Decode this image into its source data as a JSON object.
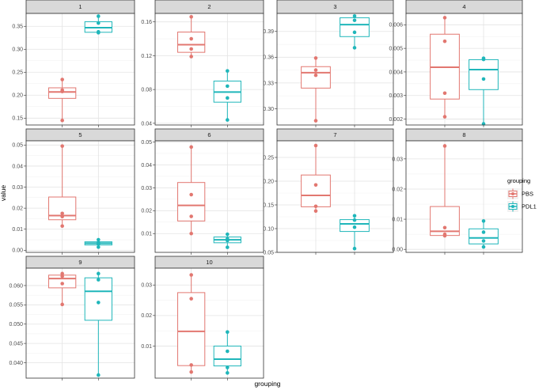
{
  "chart_data": {
    "type": "box",
    "xlabel": "grouping",
    "ylabel": "value",
    "legend": {
      "title": "grouping",
      "placement": "right",
      "entries": [
        {
          "name": "PBS",
          "color": "#E27770"
        },
        {
          "name": "PDL1",
          "color": "#1FB6BA"
        }
      ]
    },
    "panels": [
      {
        "label": "1",
        "ylim": [
          0.135,
          0.378
        ],
        "ticks": [
          0.15,
          0.2,
          0.25,
          0.3,
          0.35
        ],
        "tick_labels": [
          "0.15",
          "0.20",
          "0.25",
          "0.30",
          "0.35"
        ],
        "groups": [
          {
            "name": "PBS",
            "min": 0.145,
            "q1": 0.193,
            "median": 0.207,
            "q3": 0.216,
            "max": 0.234,
            "points": [
              0.145,
              0.208,
              0.211,
              0.234
            ]
          },
          {
            "name": "PDL1",
            "min": 0.335,
            "q1": 0.337,
            "median": 0.347,
            "q3": 0.36,
            "max": 0.372,
            "points": [
              0.336,
              0.338,
              0.357,
              0.372
            ]
          }
        ]
      },
      {
        "label": "2",
        "ylim": [
          0.038,
          0.17
        ],
        "ticks": [
          0.04,
          0.08,
          0.12,
          0.16
        ],
        "tick_labels": [
          "0.04",
          "0.08",
          "0.12",
          "0.16"
        ],
        "groups": [
          {
            "name": "PBS",
            "min": 0.119,
            "q1": 0.124,
            "median": 0.133,
            "q3": 0.148,
            "max": 0.166,
            "points": [
              0.119,
              0.128,
              0.14,
              0.166
            ]
          },
          {
            "name": "PDL1",
            "min": 0.044,
            "q1": 0.065,
            "median": 0.077,
            "q3": 0.09,
            "max": 0.102,
            "points": [
              0.044,
              0.07,
              0.084,
              0.102
            ]
          }
        ]
      },
      {
        "label": "3",
        "ylim": [
          0.281,
          0.411
        ],
        "ticks": [
          0.3,
          0.33,
          0.36,
          0.39
        ],
        "tick_labels": [
          "0.30",
          "0.33",
          "0.36",
          "0.39"
        ],
        "groups": [
          {
            "name": "PBS",
            "min": 0.286,
            "q1": 0.324,
            "median": 0.342,
            "q3": 0.349,
            "max": 0.359,
            "points": [
              0.286,
              0.339,
              0.345,
              0.359
            ]
          },
          {
            "name": "PDL1",
            "min": 0.371,
            "q1": 0.384,
            "median": 0.398,
            "q3": 0.406,
            "max": 0.408,
            "points": [
              0.371,
              0.389,
              0.403,
              0.408
            ]
          }
        ]
      },
      {
        "label": "4",
        "ylim": [
          0.00175,
          0.00648
        ],
        "ticks": [
          0.002,
          0.003,
          0.004,
          0.005,
          0.006
        ],
        "tick_labels": [
          "0.002",
          "0.003",
          "0.004",
          "0.005",
          "0.006"
        ],
        "groups": [
          {
            "name": "PBS",
            "min": 0.0021,
            "q1": 0.00285,
            "median": 0.0042,
            "q3": 0.0056,
            "max": 0.0063,
            "points": [
              0.0021,
              0.0031,
              0.0053,
              0.0063
            ]
          },
          {
            "name": "PDL1",
            "min": 0.0018,
            "q1": 0.00325,
            "median": 0.0041,
            "q3": 0.00452,
            "max": 0.00458,
            "points": [
              0.0018,
              0.0037,
              0.00453,
              0.00458
            ]
          }
        ]
      },
      {
        "label": "5",
        "ylim": [
          -0.001,
          0.052
        ],
        "ticks": [
          0.0,
          0.01,
          0.02,
          0.03,
          0.04,
          0.05
        ],
        "tick_labels": [
          "0.00",
          "0.01",
          "0.02",
          "0.03",
          "0.04",
          "0.05"
        ],
        "groups": [
          {
            "name": "PBS",
            "min": 0.0115,
            "q1": 0.0145,
            "median": 0.0165,
            "q3": 0.0253,
            "max": 0.0495,
            "points": [
              0.0115,
              0.016,
              0.0175,
              0.0495
            ]
          },
          {
            "name": "PDL1",
            "min": 0.0015,
            "q1": 0.0025,
            "median": 0.0033,
            "q3": 0.004,
            "max": 0.005,
            "points": [
              0.0015,
              0.003,
              0.0036,
              0.005
            ]
          }
        ]
      },
      {
        "label": "6",
        "ylim": [
          0.0018,
          0.0505
        ],
        "ticks": [
          0.01,
          0.02,
          0.03,
          0.04,
          0.05
        ],
        "tick_labels": [
          "0.01",
          "0.02",
          "0.03",
          "0.04",
          "0.05"
        ],
        "groups": [
          {
            "name": "PBS",
            "min": 0.01,
            "q1": 0.0155,
            "median": 0.0223,
            "q3": 0.0323,
            "max": 0.0478,
            "points": [
              0.01,
              0.0175,
              0.027,
              0.0478
            ]
          },
          {
            "name": "PDL1",
            "min": 0.004,
            "q1": 0.006,
            "median": 0.0073,
            "q3": 0.0085,
            "max": 0.0097,
            "points": [
              0.004,
              0.007,
              0.0077,
              0.0097
            ]
          }
        ]
      },
      {
        "label": "7",
        "ylim": [
          0.05,
          0.285
        ],
        "ticks": [
          0.05,
          0.1,
          0.15,
          0.2,
          0.25
        ],
        "tick_labels": [
          "0.05",
          "0.10",
          "0.15",
          "0.20",
          "0.25"
        ],
        "groups": [
          {
            "name": "PBS",
            "min": 0.137,
            "q1": 0.146,
            "median": 0.17,
            "q3": 0.213,
            "max": 0.275,
            "points": [
              0.137,
              0.147,
              0.192,
              0.275
            ]
          },
          {
            "name": "PDL1",
            "min": 0.058,
            "q1": 0.094,
            "median": 0.11,
            "q3": 0.119,
            "max": 0.127,
            "points": [
              0.058,
              0.103,
              0.118,
              0.127
            ]
          }
        ]
      },
      {
        "label": "8",
        "ylim": [
          -0.001,
          0.036
        ],
        "ticks": [
          0.0,
          0.01,
          0.02,
          0.03
        ],
        "tick_labels": [
          "0.00",
          "0.01",
          "0.02",
          "0.03"
        ],
        "groups": [
          {
            "name": "PBS",
            "min": 0.0045,
            "q1": 0.0046,
            "median": 0.006,
            "q3": 0.0142,
            "max": 0.0343,
            "points": [
              0.0045,
              0.005,
              0.0072,
              0.0343
            ]
          },
          {
            "name": "PDL1",
            "min": 0.0008,
            "q1": 0.0018,
            "median": 0.0038,
            "q3": 0.0068,
            "max": 0.0094,
            "points": [
              0.0008,
              0.0028,
              0.0057,
              0.0094
            ]
          }
        ]
      },
      {
        "label": "9",
        "ylim": [
          0.036,
          0.0645
        ],
        "ticks": [
          0.04,
          0.045,
          0.05,
          0.055,
          0.06
        ],
        "tick_labels": [
          "0.040",
          "0.045",
          "0.050",
          "0.055",
          "0.060"
        ],
        "groups": [
          {
            "name": "PBS",
            "min": 0.0551,
            "q1": 0.0594,
            "median": 0.0618,
            "q3": 0.0627,
            "max": 0.0631,
            "points": [
              0.0551,
              0.0605,
              0.0624,
              0.0631
            ]
          },
          {
            "name": "PDL1",
            "min": 0.0368,
            "q1": 0.051,
            "median": 0.0585,
            "q3": 0.062,
            "max": 0.0631,
            "points": [
              0.0368,
              0.0556,
              0.0615,
              0.0631
            ]
          }
        ]
      },
      {
        "label": "10",
        "ylim": [
          -0.0005,
          0.0355
        ],
        "ticks": [
          0.01,
          0.02,
          0.03
        ],
        "tick_labels": [
          "0.01",
          "0.02",
          "0.03"
        ],
        "groups": [
          {
            "name": "PBS",
            "min": 0.0015,
            "q1": 0.0036,
            "median": 0.0148,
            "q3": 0.0275,
            "max": 0.0333,
            "points": [
              0.0015,
              0.0038,
              0.0255,
              0.0333
            ]
          },
          {
            "name": "PDL1",
            "min": 0.0012,
            "q1": 0.0035,
            "median": 0.0057,
            "q3": 0.01,
            "max": 0.0146,
            "points": [
              0.0012,
              0.003,
              0.0083,
              0.0146
            ]
          }
        ]
      }
    ]
  }
}
